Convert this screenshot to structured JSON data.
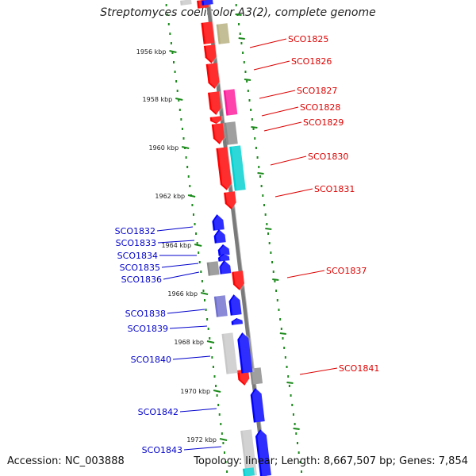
{
  "title": "Streptomyces coelicolor A3(2), complete genome",
  "footer": {
    "accession": "Accession: NC_003888",
    "summary": "Topology: linear; Length: 8,667,507 bp; Genes: 7,854"
  },
  "colors": {
    "backbone": "#7a7a7a",
    "tick": "#1a8a1a",
    "forward_label": "#dd0000",
    "reverse_label": "#0000cc",
    "red": "#ff0000",
    "blue": "#0000ff",
    "grey": "#8a8a8a",
    "light_grey": "#c8c8c8",
    "khaki": "#b8b080",
    "magenta": "#ff1a9a",
    "cyan": "#00d0d0",
    "slate": "#7070d0"
  },
  "kbp_ticks": [
    "1956 kbp",
    "1958 kbp",
    "1960 kbp",
    "1962 kbp",
    "1964 kbp",
    "1966 kbp",
    "1968 kbp",
    "1970 kbp",
    "1972 kbp"
  ],
  "forward_genes": [
    "SCO1825",
    "SCO1826",
    "SCO1827",
    "SCO1828",
    "SCO1829",
    "SCO1830",
    "SCO1831",
    "SCO1837",
    "SCO1841"
  ],
  "reverse_genes": [
    "SCO1832",
    "SCO1833",
    "SCO1834",
    "SCO1835",
    "SCO1836",
    "SCO1838",
    "SCO1839",
    "SCO1840",
    "SCO1842",
    "SCO1843"
  ]
}
